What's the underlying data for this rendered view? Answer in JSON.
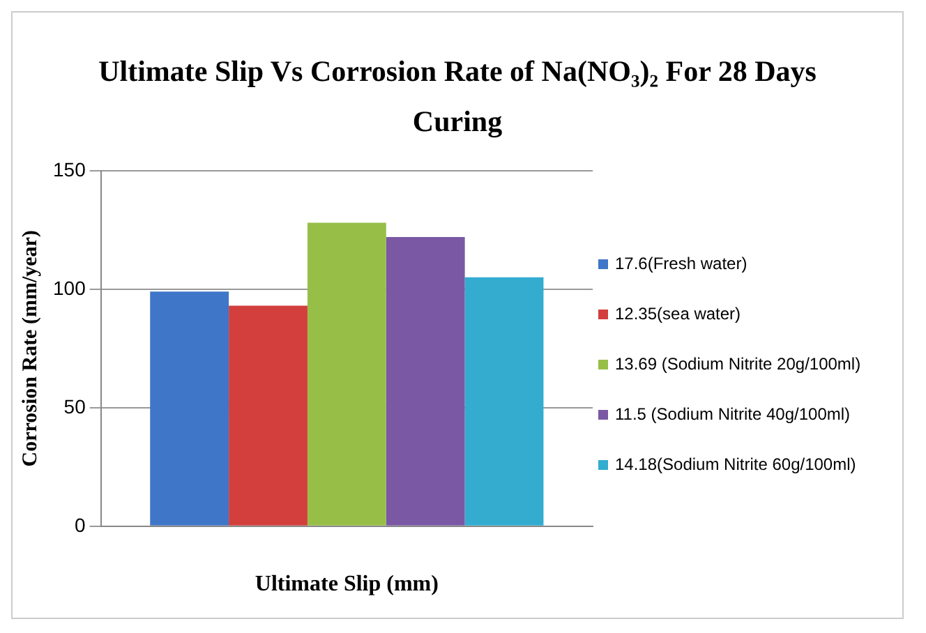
{
  "chart_data": {
    "type": "bar",
    "title": "Ultimate Slip Vs Corrosion Rate of Na(NO₃)₂ For 28 Days Curing",
    "xlabel": "Ultimate Slip (mm)",
    "ylabel": "Corrosion Rate (mm/year)",
    "categories": [
      null
    ],
    "series": [
      {
        "name": "17.6(Fresh water)",
        "color": "#3f76c8",
        "values": [
          99
        ]
      },
      {
        "name": "12.35(sea water)",
        "color": "#d23f3c",
        "values": [
          93
        ]
      },
      {
        "name": "13.69 (Sodium Nitrite 20g/100ml)",
        "color": "#97bf48",
        "values": [
          128
        ]
      },
      {
        "name": "11.5 (Sodium Nitrite 40g/100ml)",
        "color": "#7a58a4",
        "values": [
          122
        ]
      },
      {
        "name": "14.18(Sodium Nitrite 60g/100ml)",
        "color": "#33acd0",
        "values": [
          105
        ]
      }
    ],
    "ylim": [
      0,
      150
    ],
    "yticks": [
      0,
      50,
      100,
      150
    ],
    "grid": "y",
    "legend": "right"
  }
}
